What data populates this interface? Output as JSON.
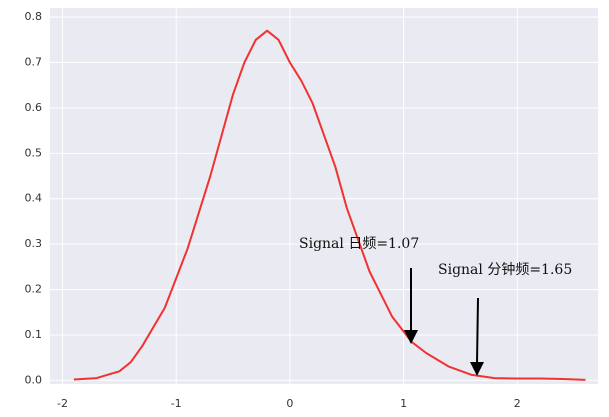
{
  "chart_data": {
    "type": "line",
    "x": [
      -1.9,
      -1.7,
      -1.5,
      -1.4,
      -1.3,
      -1.1,
      -0.9,
      -0.7,
      -0.5,
      -0.4,
      -0.3,
      -0.2,
      -0.1,
      0,
      0.1,
      0.2,
      0.4,
      0.5,
      0.7,
      0.9,
      1.07,
      1.2,
      1.4,
      1.6,
      1.8,
      2.0,
      2.2,
      2.4,
      2.6
    ],
    "values": [
      0.002,
      0.005,
      0.02,
      0.04,
      0.075,
      0.16,
      0.29,
      0.45,
      0.63,
      0.7,
      0.75,
      0.77,
      0.75,
      0.7,
      0.66,
      0.61,
      0.47,
      0.38,
      0.24,
      0.14,
      0.085,
      0.06,
      0.03,
      0.012,
      0.005,
      0.004,
      0.004,
      0.003,
      0.001
    ],
    "color": "#f03232",
    "xlim": [
      -2.11,
      2.71
    ],
    "xticks": [
      -2,
      -1,
      0,
      1,
      2
    ],
    "ylim": [
      -0.008,
      0.82
    ],
    "yticks": [
      {
        "value": 0,
        "label": "0.0"
      },
      0.1,
      0.2,
      0.3,
      0.4,
      0.5,
      0.6,
      0.7,
      0.8
    ],
    "grid": true,
    "annotations": [
      "Signal 日频=1.07",
      "Signal 分钟频=1.65"
    ]
  }
}
